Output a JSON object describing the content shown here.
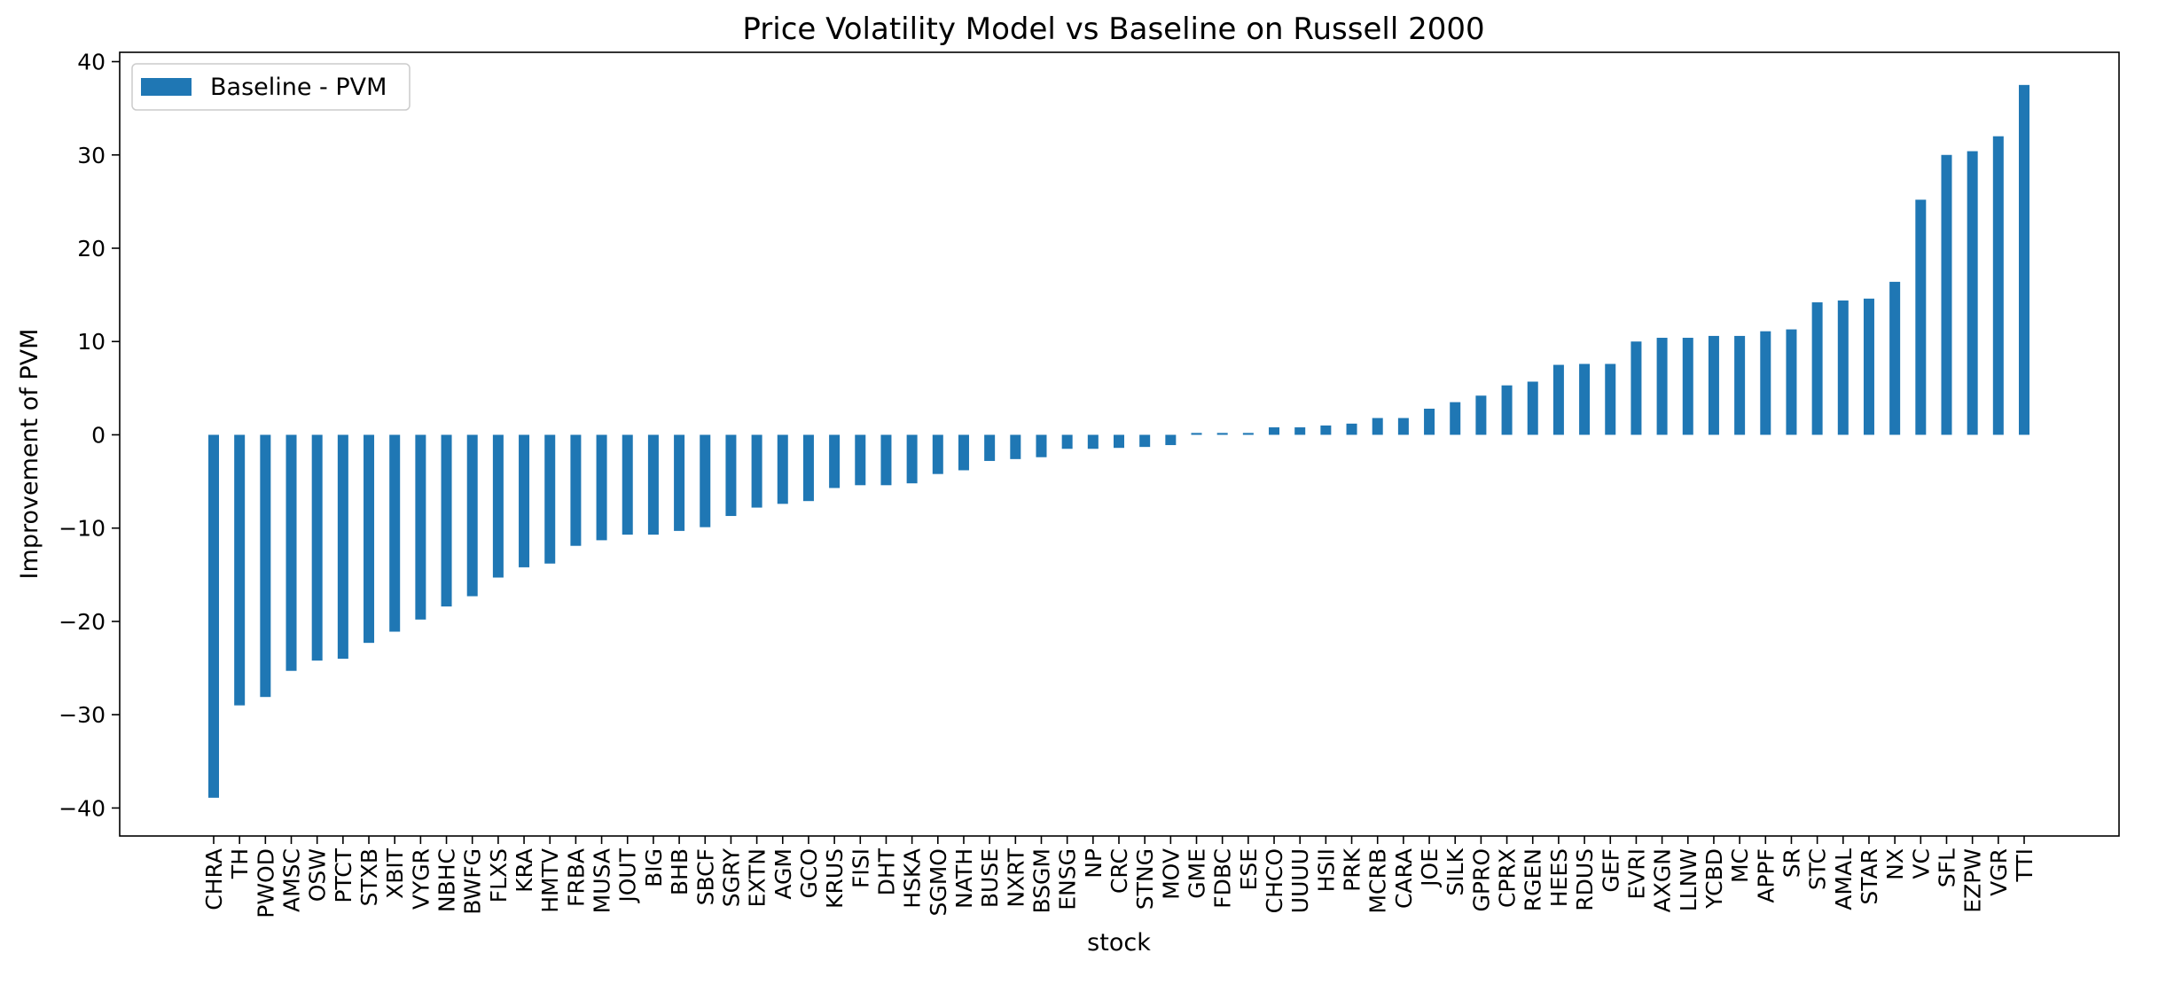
{
  "chart_data": {
    "type": "bar",
    "title": "Price Volatility Model vs Baseline on Russell 2000",
    "xlabel": "stock",
    "ylabel": "Improvement of PVM",
    "ylim": [
      -43,
      41
    ],
    "yticks": [
      -40,
      -30,
      -20,
      -10,
      0,
      10,
      20,
      30,
      40
    ],
    "grid": false,
    "legend": "top-left",
    "colors": {
      "bar": "#1f77b4"
    },
    "categories": [
      "CHRA",
      "TH",
      "PWOD",
      "AMSC",
      "OSW",
      "PTCT",
      "STXB",
      "XBIT",
      "VYGR",
      "NBHC",
      "BWFG",
      "FLXS",
      "KRA",
      "HMTV",
      "FRBA",
      "MUSA",
      "JOUT",
      "BIG",
      "BHB",
      "SBCF",
      "SGRY",
      "EXTN",
      "AGM",
      "GCO",
      "KRUS",
      "FISI",
      "DHT",
      "HSKA",
      "SGMO",
      "NATH",
      "BUSE",
      "NXRT",
      "BSGM",
      "ENSG",
      "NP",
      "CRC",
      "STNG",
      "MOV",
      "GME",
      "FDBC",
      "ESE",
      "CHCO",
      "UUUU",
      "HSII",
      "PRK",
      "MCRB",
      "CARA",
      "JOE",
      "SILK",
      "GPRO",
      "CPRX",
      "RGEN",
      "HEES",
      "RDUS",
      "GEF",
      "EVRI",
      "AXGN",
      "LLNW",
      "YCBD",
      "MC",
      "APPF",
      "SR",
      "STC",
      "AMAL",
      "STAR",
      "NX",
      "VC",
      "SFL",
      "EZPW",
      "VGR",
      "TTI"
    ],
    "series": [
      {
        "name": "Baseline - PVM",
        "values": [
          -38.9,
          -29.0,
          -28.1,
          -25.3,
          -24.2,
          -24.0,
          -22.3,
          -21.1,
          -19.8,
          -18.4,
          -17.3,
          -15.3,
          -14.2,
          -13.8,
          -11.9,
          -11.3,
          -10.7,
          -10.7,
          -10.3,
          -9.9,
          -8.7,
          -7.8,
          -7.4,
          -7.1,
          -5.7,
          -5.4,
          -5.4,
          -5.2,
          -4.2,
          -3.8,
          -2.8,
          -2.6,
          -2.4,
          -1.5,
          -1.5,
          -1.4,
          -1.3,
          -1.1,
          0.2,
          0.2,
          0.2,
          0.8,
          0.8,
          1.0,
          1.2,
          1.8,
          1.8,
          2.8,
          3.5,
          4.2,
          5.3,
          5.7,
          7.5,
          7.6,
          7.6,
          10.0,
          10.4,
          10.4,
          10.6,
          10.6,
          11.1,
          11.3,
          14.2,
          14.4,
          14.6,
          16.4,
          25.2,
          30.0,
          30.4,
          32.0,
          37.5
        ]
      }
    ]
  }
}
